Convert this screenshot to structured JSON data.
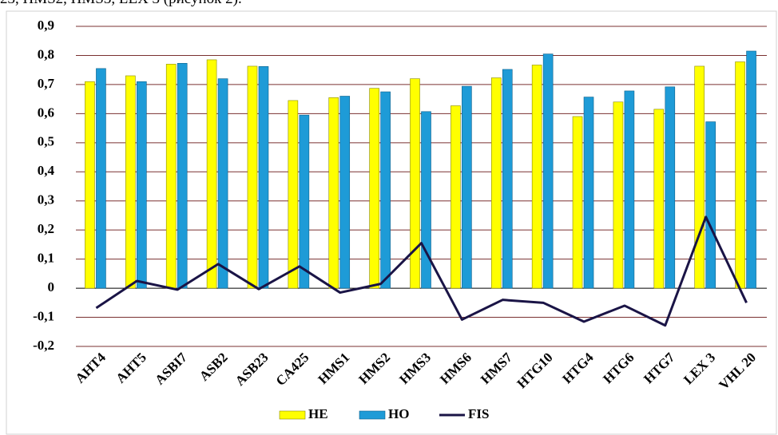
{
  "header_text": "23, HMS2, HMS3, LEX 3 (рисунок 2).",
  "chart_data": {
    "type": "bar",
    "categories": [
      "AHT4",
      "AHT5",
      "ASBI7",
      "ASB2",
      "ASB23",
      "CA425",
      "HMS1",
      "HMS2",
      "HMS3",
      "HMS6",
      "HMS7",
      "HTG10",
      "HTG4",
      "HTG6",
      "HTG7",
      "LEX 3",
      "VHL 20"
    ],
    "series": [
      {
        "name": "HE",
        "color": "#ffff00",
        "values": [
          0.71,
          0.73,
          0.77,
          0.785,
          0.763,
          0.645,
          0.655,
          0.687,
          0.72,
          0.627,
          0.723,
          0.767,
          0.59,
          0.64,
          0.615,
          0.763,
          0.778
        ]
      },
      {
        "name": "HO",
        "color": "#1e9bd7",
        "values": [
          0.755,
          0.71,
          0.773,
          0.72,
          0.762,
          0.595,
          0.66,
          0.675,
          0.607,
          0.694,
          0.752,
          0.805,
          0.657,
          0.678,
          0.692,
          0.572,
          0.815
        ]
      },
      {
        "name": "FIS",
        "type": "line",
        "color": "#1a1446",
        "values": [
          -0.068,
          0.025,
          -0.005,
          0.083,
          -0.003,
          0.075,
          -0.015,
          0.015,
          0.155,
          -0.108,
          -0.04,
          -0.05,
          -0.115,
          -0.06,
          -0.128,
          0.245,
          -0.05
        ]
      }
    ],
    "ylim": [
      -0.2,
      0.9
    ],
    "yticks": [
      {
        "value": -0.2,
        "label": "-0,2"
      },
      {
        "value": -0.1,
        "label": "-0,1"
      },
      0,
      {
        "value": 0.1,
        "label": "0,1"
      },
      {
        "value": 0.2,
        "label": "0,2"
      },
      {
        "value": 0.3,
        "label": "0,3"
      },
      {
        "value": 0.4,
        "label": "0,4"
      },
      {
        "value": 0.5,
        "label": "0,5"
      },
      {
        "value": 0.6,
        "label": "0,6"
      },
      {
        "value": 0.7,
        "label": "0,7"
      },
      {
        "value": 0.8,
        "label": "0,8"
      },
      {
        "value": 0.9,
        "label": "0,9"
      }
    ],
    "grid": true,
    "legend": "bottom"
  }
}
